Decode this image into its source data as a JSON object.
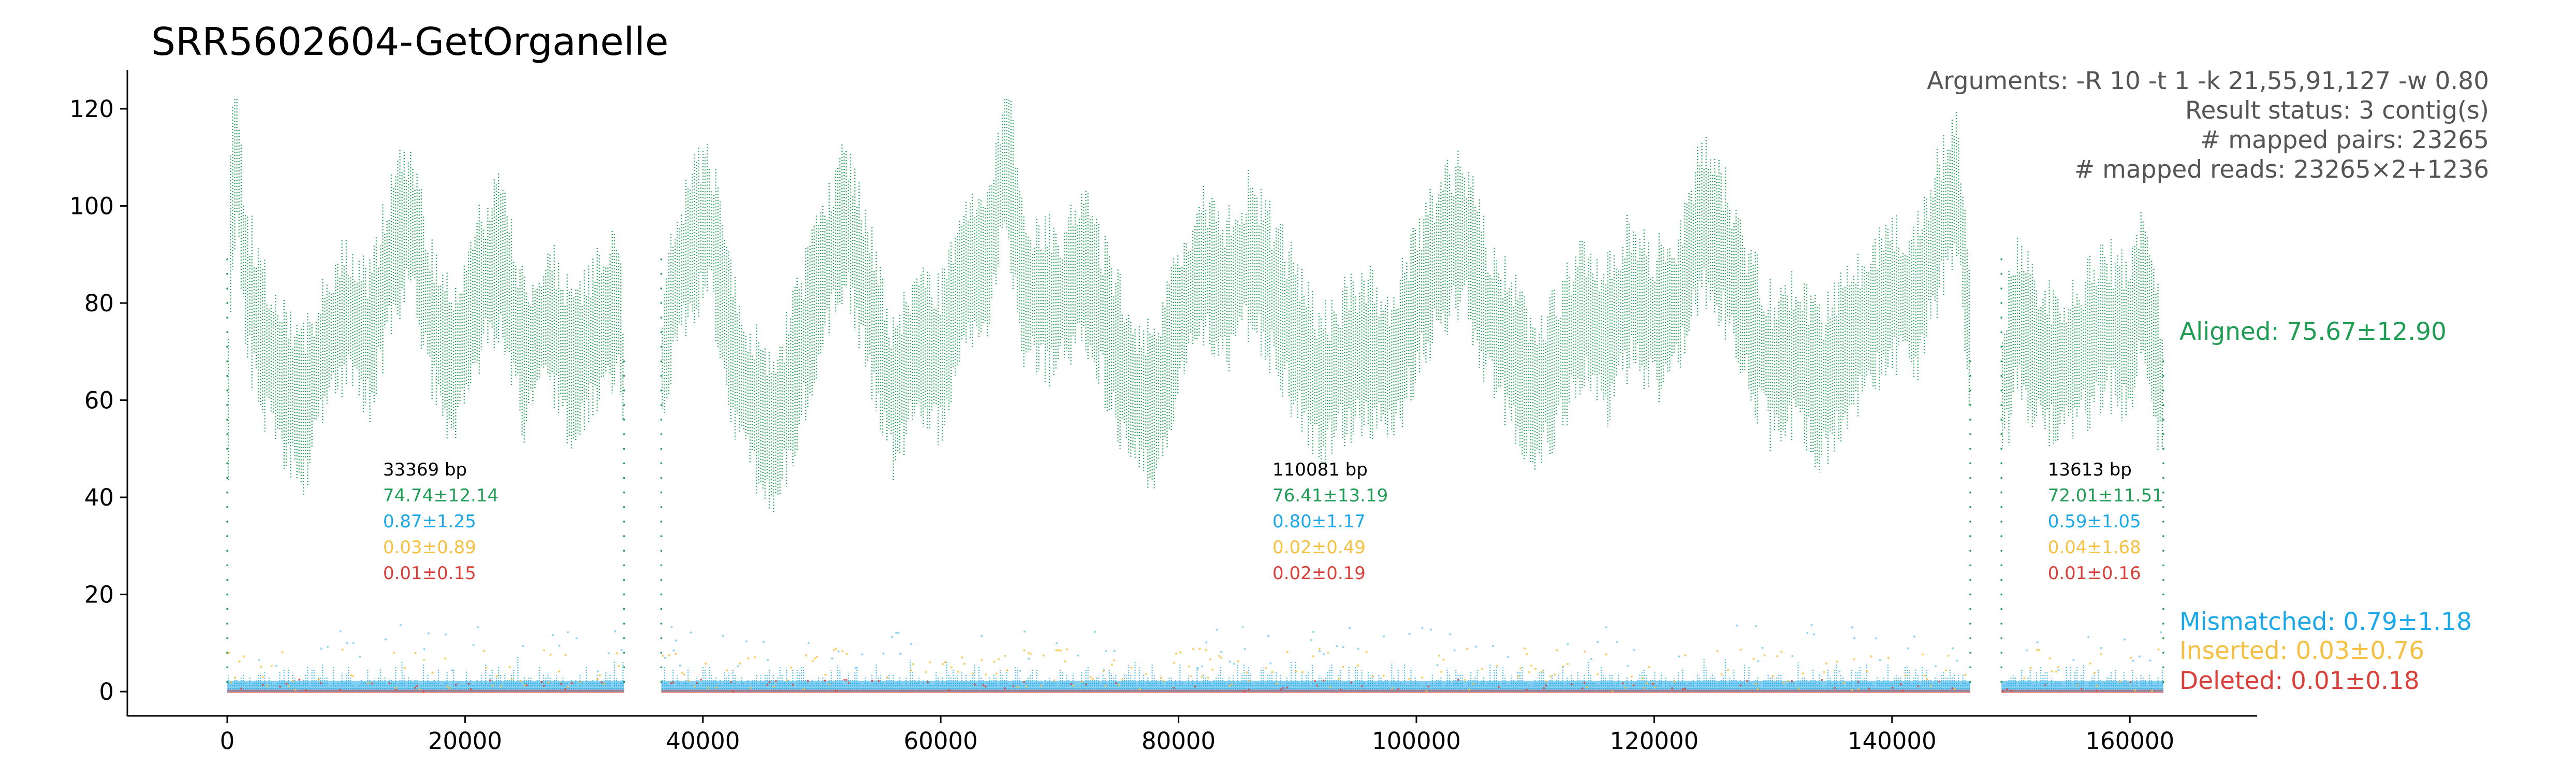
{
  "chart_data": {
    "type": "scatter",
    "title": "SRR5602604-GetOrganelle",
    "xlabel": "",
    "ylabel": "",
    "xlim": [
      -8400,
      170700
    ],
    "ylim": [
      -5,
      128
    ],
    "xticks": [
      0,
      20000,
      40000,
      60000,
      80000,
      100000,
      120000,
      140000,
      160000
    ],
    "yticks": [
      0,
      20,
      40,
      60,
      80,
      100,
      120
    ],
    "info_lines": [
      "Arguments: -R 10 -t 1 -k 21,55,91,127 -w 0.80",
      "Result status: 3 contig(s)",
      "# mapped pairs: 23265",
      "# mapped reads: 23265×2+1236"
    ],
    "series": [
      {
        "name": "Aligned: 75.67±12.90",
        "color": "#1f9d55",
        "mean": 75.67,
        "sd": 12.9
      },
      {
        "name": "Mismatched: 0.79±1.18",
        "color": "#1ba7e8",
        "mean": 0.79,
        "sd": 1.18
      },
      {
        "name": "Inserted: 0.03±0.76",
        "color": "#f6c142",
        "mean": 0.03,
        "sd": 0.76
      },
      {
        "name": "Deleted: 0.01±0.18",
        "color": "#d9403a",
        "mean": 0.01,
        "sd": 0.18
      }
    ],
    "contigs": [
      {
        "start": 0,
        "end": 33369,
        "label": "33369 bp",
        "stats": [
          "74.74±12.14",
          "0.87±1.25",
          "0.03±0.89",
          "0.01±0.15"
        ],
        "aligned_profile": [
          [
            0,
            40
          ],
          [
            300,
            100
          ],
          [
            800,
            112
          ],
          [
            1500,
            85
          ],
          [
            3000,
            72
          ],
          [
            5000,
            62
          ],
          [
            6500,
            58
          ],
          [
            8000,
            70
          ],
          [
            10000,
            78
          ],
          [
            12000,
            72
          ],
          [
            14000,
            92
          ],
          [
            15500,
            98
          ],
          [
            17000,
            78
          ],
          [
            19000,
            66
          ],
          [
            21000,
            82
          ],
          [
            23000,
            90
          ],
          [
            25000,
            68
          ],
          [
            27000,
            78
          ],
          [
            29000,
            66
          ],
          [
            31000,
            74
          ],
          [
            33000,
            80
          ],
          [
            33369,
            60
          ]
        ]
      },
      {
        "start": 36500,
        "end": 146581,
        "label": "110081 bp",
        "stats": [
          "76.41±13.19",
          "0.80±1.17",
          "0.02±0.49",
          "0.02±0.19"
        ],
        "aligned_profile": [
          [
            36500,
            65
          ],
          [
            37500,
            82
          ],
          [
            39000,
            92
          ],
          [
            40500,
            98
          ],
          [
            42500,
            70
          ],
          [
            44000,
            60
          ],
          [
            46000,
            52
          ],
          [
            48000,
            68
          ],
          [
            50000,
            85
          ],
          [
            52000,
            98
          ],
          [
            54000,
            80
          ],
          [
            56000,
            60
          ],
          [
            58000,
            72
          ],
          [
            60000,
            68
          ],
          [
            62000,
            86
          ],
          [
            64000,
            88
          ],
          [
            65500,
            112
          ],
          [
            67000,
            82
          ],
          [
            70000,
            80
          ],
          [
            72000,
            88
          ],
          [
            74000,
            75
          ],
          [
            76000,
            62
          ],
          [
            78000,
            58
          ],
          [
            80000,
            76
          ],
          [
            82000,
            88
          ],
          [
            84000,
            82
          ],
          [
            86000,
            90
          ],
          [
            88000,
            82
          ],
          [
            90000,
            72
          ],
          [
            92000,
            62
          ],
          [
            94000,
            68
          ],
          [
            96000,
            70
          ],
          [
            98000,
            66
          ],
          [
            100000,
            80
          ],
          [
            102000,
            90
          ],
          [
            104000,
            95
          ],
          [
            106000,
            78
          ],
          [
            108000,
            70
          ],
          [
            110000,
            60
          ],
          [
            112000,
            68
          ],
          [
            114000,
            78
          ],
          [
            116000,
            72
          ],
          [
            118000,
            82
          ],
          [
            120000,
            76
          ],
          [
            122000,
            80
          ],
          [
            124000,
            98
          ],
          [
            126000,
            90
          ],
          [
            128000,
            76
          ],
          [
            130000,
            66
          ],
          [
            132000,
            70
          ],
          [
            134000,
            62
          ],
          [
            136000,
            70
          ],
          [
            138000,
            76
          ],
          [
            140000,
            82
          ],
          [
            142000,
            80
          ],
          [
            144000,
            96
          ],
          [
            145500,
            105
          ],
          [
            146581,
            70
          ]
        ]
      },
      {
        "start": 149200,
        "end": 162813,
        "label": "13613 bp",
        "stats": [
          "72.01±11.51",
          "0.59±1.05",
          "0.04±1.68",
          "0.01±0.16"
        ],
        "aligned_profile": [
          [
            149200,
            60
          ],
          [
            150500,
            78
          ],
          [
            152000,
            70
          ],
          [
            154000,
            66
          ],
          [
            156000,
            70
          ],
          [
            158000,
            76
          ],
          [
            160000,
            72
          ],
          [
            161000,
            85
          ],
          [
            162000,
            72
          ],
          [
            162813,
            60
          ]
        ]
      }
    ]
  }
}
